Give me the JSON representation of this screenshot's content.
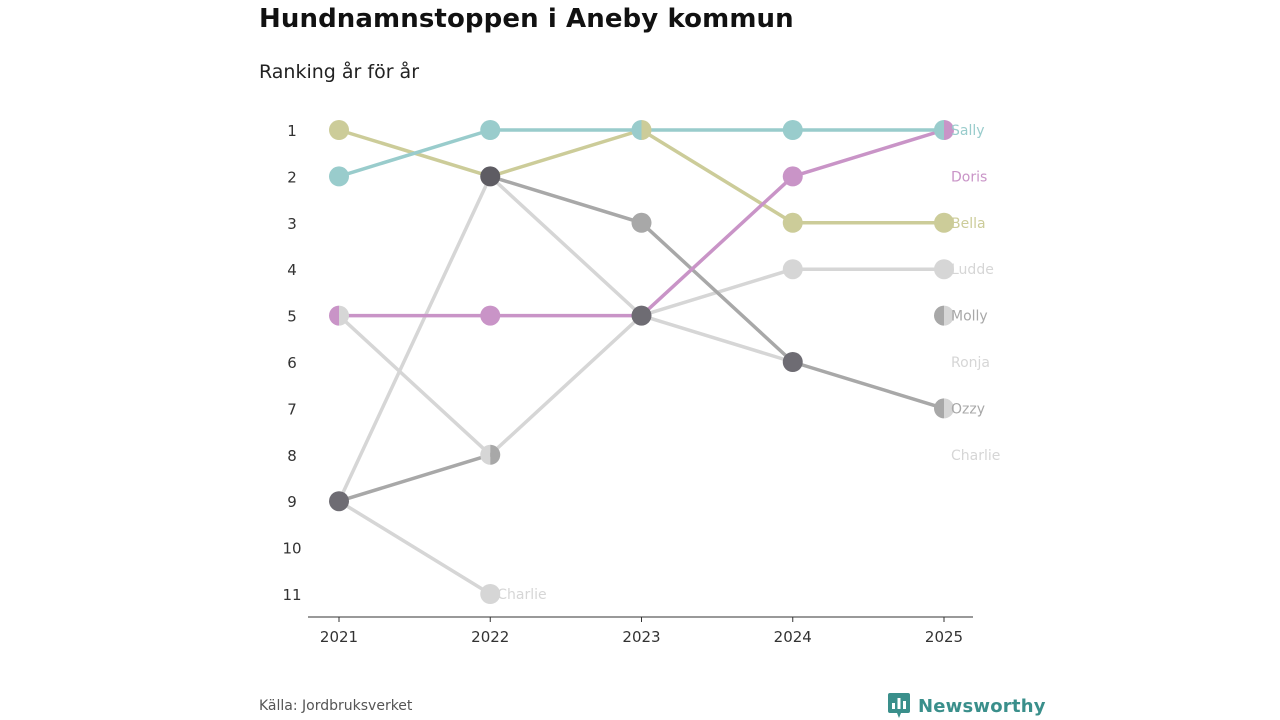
{
  "chart_data": {
    "type": "line",
    "title": "Hundnamnstoppen i Aneby kommun",
    "subtitle": "Ranking år för år",
    "x": [
      "2021",
      "2022",
      "2023",
      "2024",
      "2025"
    ],
    "y_ticks": [
      "1",
      "2",
      "3",
      "4",
      "5",
      "6",
      "7",
      "8",
      "9",
      "10",
      "11"
    ],
    "ylim": [
      1,
      11
    ],
    "y_inverted": true,
    "grid": false,
    "series": [
      {
        "name": "Ludde",
        "color": "#d6d6d6",
        "values": [
          9,
          2,
          5,
          4,
          4
        ],
        "label": "Ludde"
      },
      {
        "name": "Ronja",
        "color": "#d6d6d6",
        "values": [
          5,
          8,
          5,
          6,
          null
        ],
        "label": "Ronja"
      },
      {
        "name": "Charlie",
        "color": "#d6d6d6",
        "values": [
          9,
          11,
          null,
          null,
          null
        ],
        "label": "Charlie"
      },
      {
        "name": "Molly",
        "color": "#a8a8a8",
        "values": [
          9,
          8,
          null,
          null,
          5
        ],
        "label": "Molly"
      },
      {
        "name": "Ozzy",
        "color": "#a8a8a8",
        "values": [
          null,
          2,
          3,
          6,
          7
        ],
        "label": "Ozzy"
      },
      {
        "name": "Bella",
        "color": "#cccc99",
        "values": [
          1,
          2,
          1,
          3,
          3
        ],
        "label": "Bella"
      },
      {
        "name": "Doris",
        "color": "#c994c7",
        "values": [
          5,
          5,
          5,
          2,
          1
        ],
        "label": "Doris"
      },
      {
        "name": "Sally",
        "color": "#99cccc",
        "values": [
          2,
          1,
          1,
          1,
          1
        ],
        "label": "Sally"
      }
    ],
    "extra_labels": [
      {
        "text": "Charlie",
        "year": "2022",
        "rank": 11,
        "color": "#d6d6d6"
      }
    ],
    "end_labels": [
      {
        "text": "Sally",
        "rank": 1,
        "color": "#99cccc"
      },
      {
        "text": "Doris",
        "rank": 2,
        "color": "#c994c7"
      },
      {
        "text": "Bella",
        "rank": 3,
        "color": "#cccc99"
      },
      {
        "text": "Ludde",
        "rank": 4,
        "color": "#d6d6d6"
      },
      {
        "text": "Molly",
        "rank": 5,
        "color": "#a8a8a8"
      },
      {
        "text": "Ronja",
        "rank": 6,
        "color": "#d6d6d6"
      },
      {
        "text": "Ozzy",
        "rank": 7,
        "color": "#a8a8a8"
      },
      {
        "text": "Charlie",
        "rank": 8,
        "color": "#d6d6d6"
      }
    ],
    "markers": [
      {
        "year": "2021",
        "rank": 1,
        "colors": [
          "#cccc99"
        ]
      },
      {
        "year": "2021",
        "rank": 2,
        "colors": [
          "#99cccc"
        ]
      },
      {
        "year": "2021",
        "rank": 5,
        "colors": [
          "#c994c7",
          "#d6d6d6"
        ]
      },
      {
        "year": "2021",
        "rank": 9,
        "colors": [
          "#6e6c73"
        ]
      },
      {
        "year": "2022",
        "rank": 1,
        "colors": [
          "#99cccc"
        ]
      },
      {
        "year": "2022",
        "rank": 2,
        "colors": [
          "#5e5c63"
        ]
      },
      {
        "year": "2022",
        "rank": 5,
        "colors": [
          "#c994c7"
        ]
      },
      {
        "year": "2022",
        "rank": 8,
        "colors": [
          "#d6d6d6",
          "#a8a8a8"
        ]
      },
      {
        "year": "2022",
        "rank": 11,
        "colors": [
          "#d6d6d6"
        ]
      },
      {
        "year": "2023",
        "rank": 1,
        "colors": [
          "#99cccc",
          "#cccc99"
        ]
      },
      {
        "year": "2023",
        "rank": 3,
        "colors": [
          "#a8a8a8"
        ]
      },
      {
        "year": "2023",
        "rank": 5,
        "colors": [
          "#6e6c73"
        ]
      },
      {
        "year": "2024",
        "rank": 1,
        "colors": [
          "#99cccc"
        ]
      },
      {
        "year": "2024",
        "rank": 2,
        "colors": [
          "#c994c7"
        ]
      },
      {
        "year": "2024",
        "rank": 3,
        "colors": [
          "#cccc99"
        ]
      },
      {
        "year": "2024",
        "rank": 4,
        "colors": [
          "#d6d6d6"
        ]
      },
      {
        "year": "2024",
        "rank": 6,
        "colors": [
          "#6e6c73"
        ]
      },
      {
        "year": "2025",
        "rank": 1,
        "colors": [
          "#99cccc",
          "#c994c7"
        ]
      },
      {
        "year": "2025",
        "rank": 3,
        "colors": [
          "#cccc99"
        ]
      },
      {
        "year": "2025",
        "rank": 4,
        "colors": [
          "#d6d6d6"
        ]
      },
      {
        "year": "2025",
        "rank": 5,
        "colors": [
          "#a8a8a8",
          "#d6d6d6"
        ]
      },
      {
        "year": "2025",
        "rank": 7,
        "colors": [
          "#a8a8a8",
          "#d6d6d6"
        ]
      }
    ]
  },
  "footer": {
    "source": "Källa: Jordbruksverket",
    "brand": "Newsworthy",
    "brand_color": "#3a8f8b",
    "brand_icon": "bar-chart-speech-icon"
  }
}
